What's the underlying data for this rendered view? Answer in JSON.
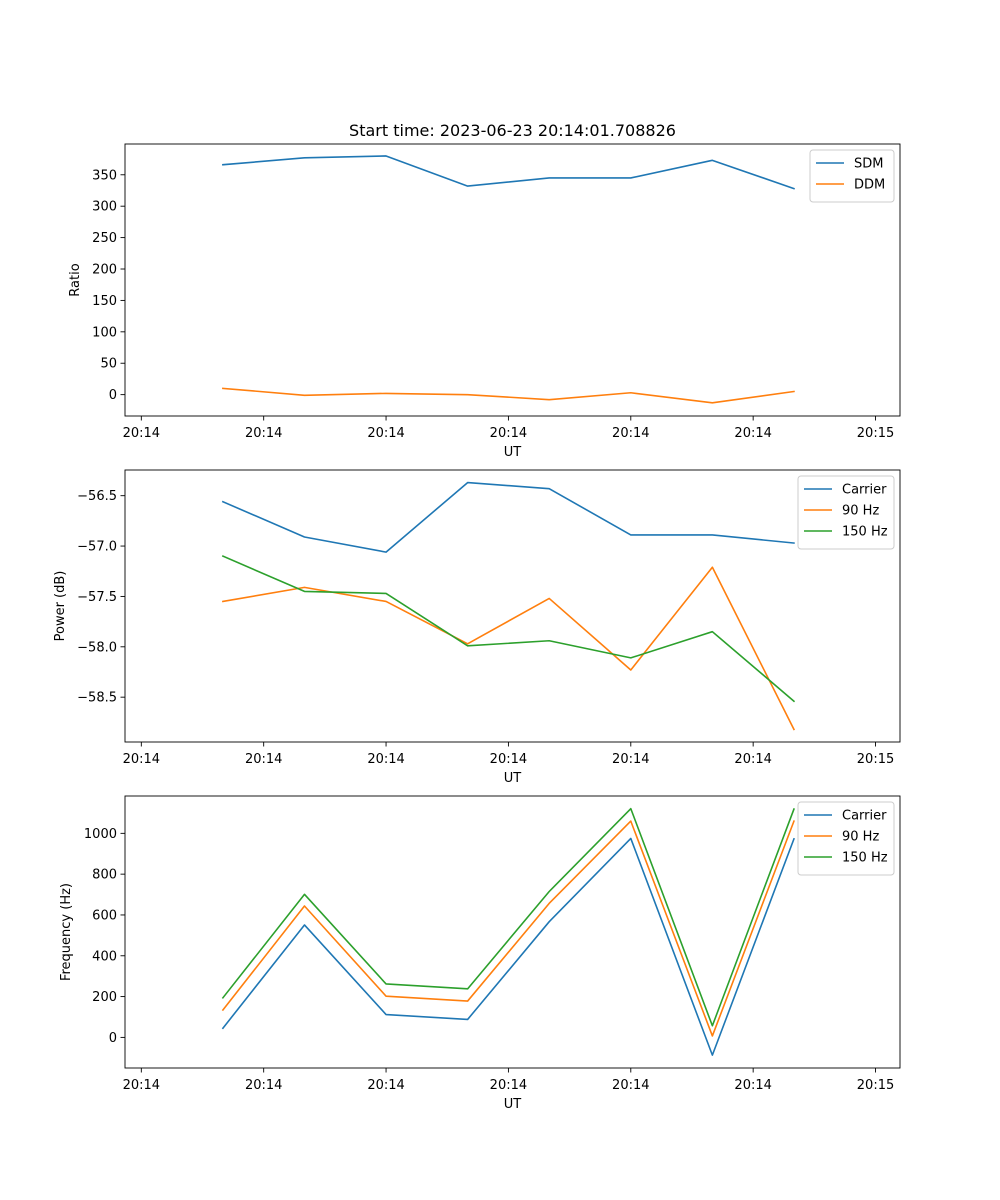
{
  "figure": {
    "title": "Start time: 2023-06-23 20:14:01.708826"
  },
  "chart_data": [
    {
      "type": "line",
      "title": "Start time: 2023-06-23 20:14:01.708826",
      "xlabel": "UT",
      "ylabel": "Ratio",
      "x_tick_labels": [
        "20:14",
        "20:14",
        "20:14",
        "20:14",
        "20:14",
        "20:14",
        "20:15"
      ],
      "x": [
        1,
        2,
        3,
        4,
        5,
        6,
        7,
        8
      ],
      "xlim": [
        -0.2,
        9.3
      ],
      "y_ticks": [
        0,
        50,
        100,
        150,
        200,
        250,
        300,
        350
      ],
      "ylim": [
        -34,
        399
      ],
      "grid": false,
      "legend_position": "top-right",
      "series": [
        {
          "name": "SDM",
          "color": "#1f77b4",
          "values": [
            366,
            377,
            380,
            332,
            345,
            345,
            373,
            328
          ]
        },
        {
          "name": "DDM",
          "color": "#ff7f0e",
          "values": [
            10,
            -1,
            2,
            0,
            -8,
            3,
            -13,
            5
          ]
        }
      ]
    },
    {
      "type": "line",
      "title": "",
      "xlabel": "UT",
      "ylabel": "Power (dB)",
      "x_tick_labels": [
        "20:14",
        "20:14",
        "20:14",
        "20:14",
        "20:14",
        "20:14",
        "20:15"
      ],
      "x": [
        1,
        2,
        3,
        4,
        5,
        6,
        7,
        8
      ],
      "xlim": [
        -0.2,
        9.3
      ],
      "y_ticks": [
        -58.5,
        -58.0,
        -57.5,
        -57.0,
        -56.5
      ],
      "y_tick_labels": [
        "−58.5",
        "−58.0",
        "−57.5",
        "−57.0",
        "−56.5"
      ],
      "ylim": [
        -58.945,
        -56.245
      ],
      "grid": false,
      "legend_position": "top-right",
      "series": [
        {
          "name": "Carrier",
          "color": "#1f77b4",
          "values": [
            -56.56,
            -56.91,
            -57.06,
            -56.37,
            -56.43,
            -56.89,
            -56.89,
            -56.97
          ]
        },
        {
          "name": "90 Hz",
          "color": "#ff7f0e",
          "values": [
            -57.55,
            -57.41,
            -57.55,
            -57.97,
            -57.52,
            -58.23,
            -57.21,
            -58.82
          ]
        },
        {
          "name": "150 Hz",
          "color": "#2ca02c",
          "values": [
            -57.1,
            -57.45,
            -57.47,
            -57.99,
            -57.94,
            -58.11,
            -57.85,
            -58.54
          ]
        }
      ]
    },
    {
      "type": "line",
      "title": "",
      "xlabel": "UT",
      "ylabel": "Frequency (Hz)",
      "x_tick_labels": [
        "20:14",
        "20:14",
        "20:14",
        "20:14",
        "20:14",
        "20:14",
        "20:15"
      ],
      "x": [
        1,
        2,
        3,
        4,
        5,
        6,
        7,
        8
      ],
      "xlim": [
        -0.2,
        9.3
      ],
      "y_ticks": [
        0,
        200,
        400,
        600,
        800,
        1000
      ],
      "ylim": [
        -150,
        1183
      ],
      "grid": false,
      "legend_position": "top-right",
      "series": [
        {
          "name": "Carrier",
          "color": "#1f77b4",
          "values": [
            45,
            551,
            112,
            88,
            567,
            975,
            -87,
            973
          ]
        },
        {
          "name": "90 Hz",
          "color": "#ff7f0e",
          "values": [
            134,
            644,
            202,
            178,
            657,
            1060,
            7,
            1060
          ]
        },
        {
          "name": "150 Hz",
          "color": "#2ca02c",
          "values": [
            194,
            701,
            262,
            238,
            715,
            1121,
            57,
            1119
          ]
        }
      ]
    }
  ]
}
